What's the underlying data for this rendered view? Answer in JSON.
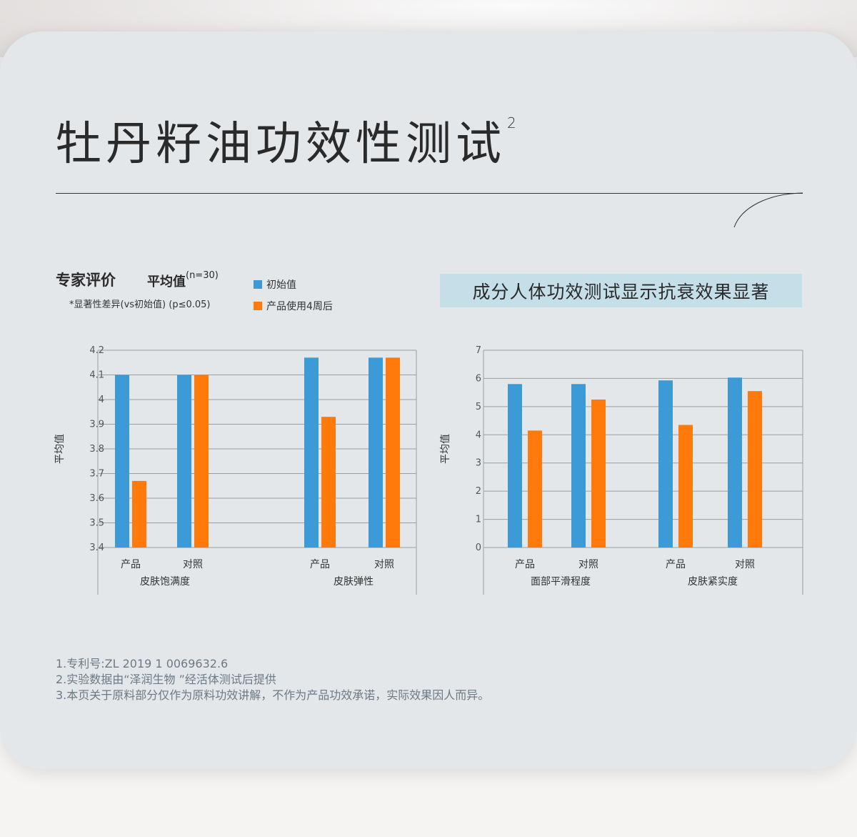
{
  "title": "牡丹籽油功效性测试",
  "title_sup": "2",
  "expert_label": "专家评价",
  "avg_label": "平均值",
  "avg_n": "(n=30)",
  "significance_note": "*显著性差异(vs初始值) (p≤0.05)",
  "legend": [
    {
      "label": "初始值",
      "color": "#3c9ad6"
    },
    {
      "label": "产品使用4周后",
      "color": "#ff7a0a"
    }
  ],
  "banner": "成分人体功效测试显示抗衰效果显著",
  "footnotes": [
    "1.专利号:ZL 2019 1 0069632.6",
    "2.实验数据由“泽润生物 ”经活体测试后提供",
    "3.本页关于原料部分仅作为原料功效讲解，不作为产品功效承诺，实际效果因人而异。"
  ],
  "chart_data": [
    {
      "type": "bar",
      "ylabel": "平均值",
      "ylim": [
        3.4,
        4.2
      ],
      "yticks": [
        "3.4",
        "3.5",
        "3.6",
        "3.7",
        "3.8",
        "3.9",
        "4",
        "4.1",
        "4.2"
      ],
      "grid": true,
      "groups": [
        {
          "name": "皮肤饱满度",
          "categories": [
            "产品",
            "对照"
          ]
        },
        {
          "name": "皮肤弹性",
          "categories": [
            "产品",
            "对照"
          ]
        }
      ],
      "series": [
        {
          "name": "初始值",
          "color": "#3c9ad6",
          "values": [
            4.1,
            4.1,
            4.17,
            4.17
          ]
        },
        {
          "name": "产品使用4周后",
          "color": "#ff7a0a",
          "values": [
            3.67,
            4.1,
            3.93,
            4.17
          ]
        }
      ]
    },
    {
      "type": "bar",
      "ylabel": "平均值",
      "ylim": [
        0,
        7
      ],
      "yticks": [
        "0",
        "1",
        "2",
        "3",
        "4",
        "5",
        "6",
        "7"
      ],
      "grid": true,
      "groups": [
        {
          "name": "面部平滑程度",
          "categories": [
            "产品",
            "对照"
          ]
        },
        {
          "name": "皮肤紧实度",
          "categories": [
            "产品",
            "对照"
          ]
        }
      ],
      "series": [
        {
          "name": "初始值",
          "color": "#3c9ad6",
          "values": [
            5.8,
            5.8,
            5.93,
            6.03
          ]
        },
        {
          "name": "产品使用4周后",
          "color": "#ff7a0a",
          "values": [
            4.15,
            5.25,
            4.35,
            5.55
          ]
        }
      ]
    }
  ]
}
